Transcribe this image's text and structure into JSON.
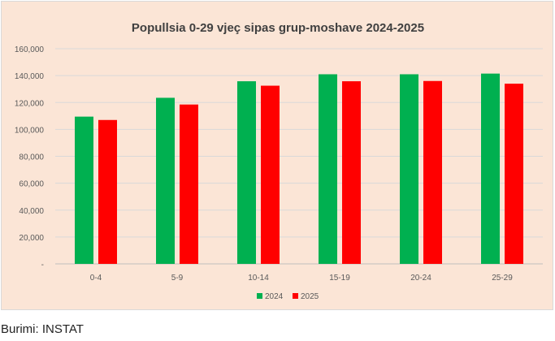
{
  "chart_data": {
    "type": "bar",
    "title": "Popullsia 0-29 vjeç sipas grup-moshave 2024-2025",
    "xlabel": "",
    "ylabel": "",
    "categories": [
      "0-4",
      "5-9",
      "10-14",
      "15-19",
      "20-24",
      "25-29"
    ],
    "series": [
      {
        "name": "2024",
        "color": "#00b050",
        "values": [
          109500,
          123500,
          135800,
          141000,
          141000,
          141500
        ]
      },
      {
        "name": "2025",
        "color": "#ff0000",
        "values": [
          107000,
          118500,
          132500,
          135800,
          136000,
          134000
        ]
      }
    ],
    "ylim": [
      0,
      160000
    ],
    "yticks": [
      "-",
      "20,000",
      "40,000",
      "60,000",
      "80,000",
      "100,000",
      "120,000",
      "140,000",
      "160,000"
    ],
    "grid": true,
    "legend": "bottom-center"
  },
  "source": "Burimi: INSTAT"
}
